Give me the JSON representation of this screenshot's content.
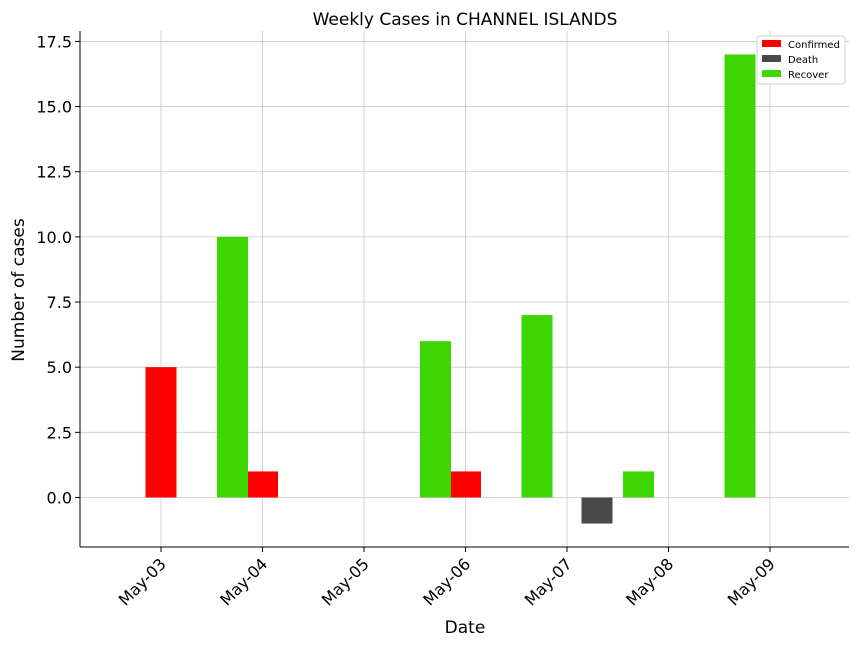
{
  "chart_data": {
    "type": "bar",
    "title": "Weekly Cases in CHANNEL ISLANDS",
    "xlabel": "Date",
    "ylabel": "Number of cases",
    "categories": [
      "May-03",
      "May-04",
      "May-05",
      "May-06",
      "May-07",
      "May-08",
      "May-09"
    ],
    "ylim": [
      -1.9,
      17.9
    ],
    "yticks": [
      "0.0",
      "2.5",
      "5.0",
      "7.5",
      "10.0",
      "12.5",
      "15.0",
      "17.5"
    ],
    "ytick_values": [
      0,
      2.5,
      5,
      7.5,
      10,
      12.5,
      15,
      17.5
    ],
    "grid": true,
    "legend_position": "top-right",
    "series": [
      {
        "name": "Confirmed",
        "color": "#ff0000",
        "bars": [
          {
            "date": "May-03",
            "value": 5
          },
          {
            "date": "May-04",
            "value": 1
          },
          {
            "date": "May-06",
            "value": 1
          }
        ]
      },
      {
        "name": "Death",
        "color": "#4a4a4a",
        "bars": [
          {
            "date": "May-07",
            "value": -1
          }
        ]
      },
      {
        "name": "Recover",
        "color": "#3dd600",
        "bars": [
          {
            "date": "May-04",
            "value": 10
          },
          {
            "date": "May-06",
            "value": 6
          },
          {
            "date": "May-07",
            "value": 7
          },
          {
            "date": "May-08",
            "value": 1
          },
          {
            "date": "May-09",
            "value": 17
          }
        ]
      }
    ]
  }
}
